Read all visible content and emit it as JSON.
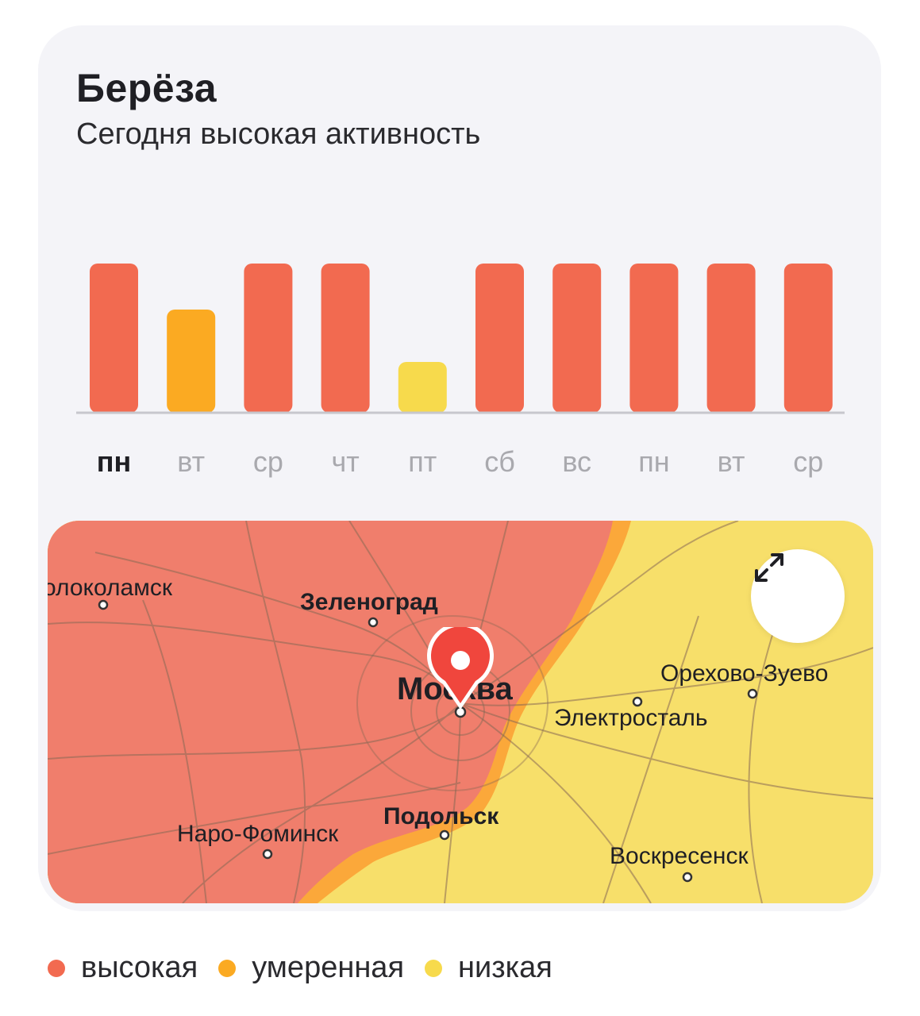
{
  "header": {
    "title": "Берёза",
    "subtitle": "Сегодня высокая активность"
  },
  "chart_data": {
    "type": "bar",
    "title": "",
    "categories": [
      "пн",
      "вт",
      "ср",
      "чт",
      "пт",
      "сб",
      "вс",
      "пн",
      "вт",
      "ср"
    ],
    "values": [
      3,
      2,
      3,
      3,
      1,
      3,
      3,
      3,
      3,
      3
    ],
    "level_labels": [
      "высокая",
      "умеренная",
      "низкая"
    ],
    "today_index": 0,
    "ylim": [
      0,
      3
    ],
    "grid": false,
    "colors": {
      "high": "#f26a50",
      "moderate": "#fbaa22",
      "low": "#f7da4c",
      "baseline": "#c7c7cd"
    }
  },
  "map": {
    "cities": {
      "volokolamsk": "олоколамск",
      "zelenograd": "Зеленоград",
      "moscow": "Москва",
      "orekhovo": "Орехово-Зуево",
      "elektrostal": "Электросталь",
      "podolsk": "Подольск",
      "naro": "Наро-Фоминск",
      "voskresensk": "Воскресенск"
    },
    "expand_icon": "expand-arrows-icon",
    "pin_icon": "location-pin-icon"
  },
  "legend": {
    "items": [
      {
        "label": "высокая",
        "color": "#f26a50"
      },
      {
        "label": "умеренная",
        "color": "#fbaa22"
      },
      {
        "label": "низкая",
        "color": "#f7da4c"
      }
    ]
  }
}
